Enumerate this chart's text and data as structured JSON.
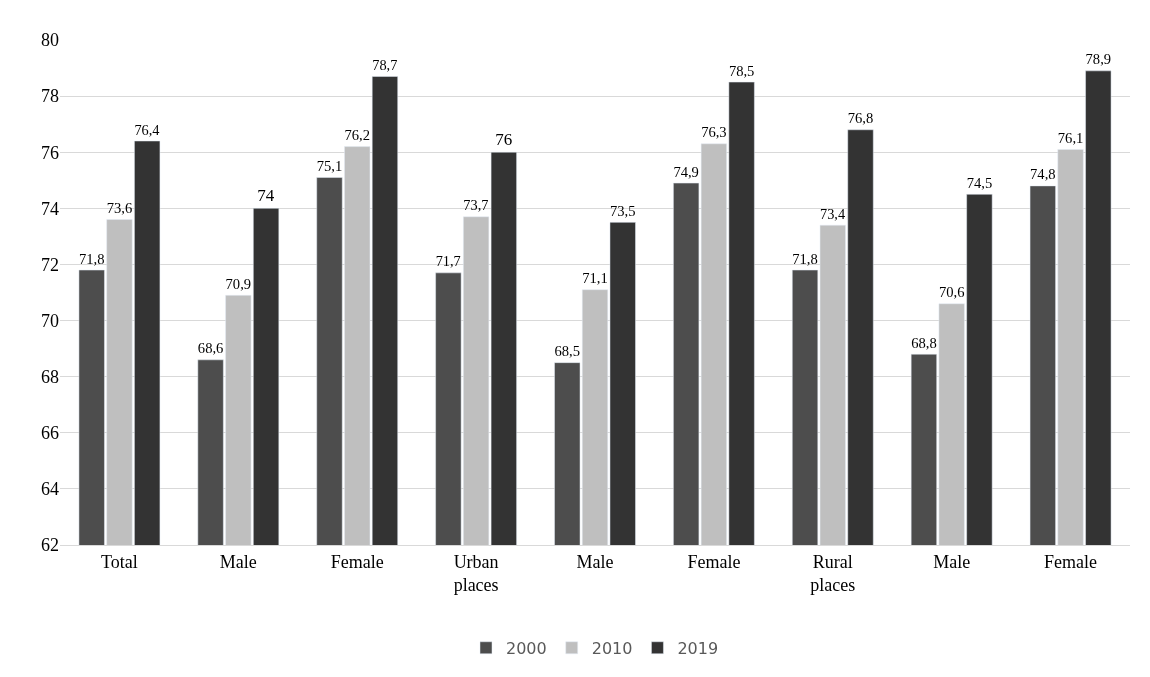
{
  "chart_data": {
    "type": "bar",
    "categories": [
      "Total",
      "Male",
      "Female",
      "Urban places",
      "Male",
      "Female",
      "Rural places",
      "Male",
      "Female"
    ],
    "series": [
      {
        "name": "2000",
        "color": "#4d4d4d",
        "values": [
          71.8,
          68.6,
          75.1,
          71.7,
          68.5,
          74.9,
          71.8,
          68.8,
          74.8
        ],
        "value_labels": [
          "71,8",
          "68,6",
          "75,1",
          "71,7",
          "68,5",
          "74,9",
          "71,8",
          "68,8",
          "74,8"
        ]
      },
      {
        "name": "2010",
        "color": "#bfbfbf",
        "values": [
          73.6,
          70.9,
          76.2,
          73.7,
          71.1,
          76.3,
          73.4,
          70.6,
          76.1
        ],
        "value_labels": [
          "73,6",
          "70,9",
          "76,2",
          "73,7",
          "71,1",
          "76,3",
          "73,4",
          "70,6",
          "76,1"
        ]
      },
      {
        "name": "2019",
        "color": "#333333",
        "values": [
          76.4,
          74,
          78.7,
          76,
          73.5,
          78.5,
          76.8,
          74.5,
          78.9
        ],
        "value_labels": [
          "76,4",
          "74",
          "78,7",
          "76",
          "73,5",
          "78,5",
          "76,8",
          "74,5",
          "78,9"
        ]
      }
    ],
    "ylim": [
      62,
      80
    ],
    "yticks": [
      62,
      64,
      66,
      68,
      70,
      72,
      74,
      76,
      78,
      80
    ],
    "grid": "y",
    "legend": "bottom"
  }
}
